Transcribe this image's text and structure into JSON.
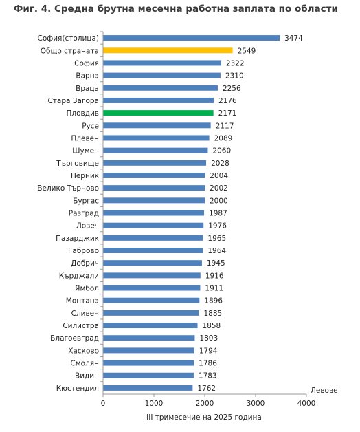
{
  "chart_data": {
    "type": "bar",
    "orientation": "horizontal",
    "title": "Фиг. 4. Средна брутна месечна работна заплата по области",
    "xlabel": "III  тримесечие на 2025 година",
    "unit_label": "Левове",
    "xlim": [
      0,
      4000
    ],
    "xticks": [
      "0",
      "1000",
      "2000",
      "3000",
      "4000"
    ],
    "grid": false,
    "legend": "none",
    "categories": [
      "София(столица)",
      "Общо страната",
      "София",
      "Варна",
      "Враца",
      "Стара Загора",
      "Пловдив",
      "Русе",
      "Плевен",
      "Шумен",
      "Търговище",
      "Перник",
      "Велико Търново",
      "Бургас",
      "Разград",
      "Ловеч",
      "Пазарджик",
      "Габрово",
      "Добрич",
      "Кърджали",
      "Ямбол",
      "Монтана",
      "Сливен",
      "Силистра",
      "Благоевград",
      "Хасково",
      "Смолян",
      "Видин",
      "Кюстендил"
    ],
    "values": [
      3474,
      2549,
      2322,
      2310,
      2256,
      2176,
      2171,
      2117,
      2089,
      2060,
      2028,
      2004,
      2002,
      2000,
      1987,
      1976,
      1965,
      1964,
      1945,
      1916,
      1911,
      1896,
      1885,
      1858,
      1803,
      1794,
      1786,
      1783,
      1762
    ],
    "colors": {
      "default": "#4f81bd",
      "highlight": {
        "Общо страната": "#ffc000",
        "Пловдив": "#00b050"
      },
      "axis": "#9a9a9a"
    }
  }
}
